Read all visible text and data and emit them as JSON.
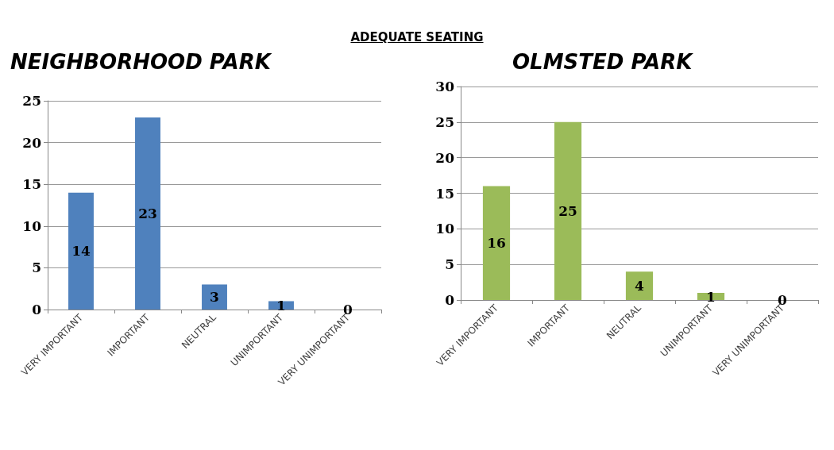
{
  "chart_data": [
    {
      "type": "bar",
      "title": "NEIGHBORHOOD PARK",
      "annotations": [
        "ADEQUATE SEATING"
      ],
      "categories": [
        "VERY IMPORTANT",
        "IMPORTANT",
        "NEUTRAL",
        "UNIMPORTANT",
        "VERY UNIMPORTANT"
      ],
      "values": [
        14,
        23,
        3,
        1,
        0
      ],
      "color": "#4f81bd",
      "ylim": [
        0,
        25
      ],
      "yticks": [
        0,
        5,
        10,
        15,
        20,
        25
      ],
      "grid": "y",
      "data_labels": true
    },
    {
      "type": "bar",
      "title": "OLMSTED PARK",
      "categories": [
        "VERY IMPORTANT",
        "IMPORTANT",
        "NEUTRAL",
        "UNIMPORTANT",
        "VERY UNIMPORTANT"
      ],
      "values": [
        16,
        25,
        4,
        1,
        0
      ],
      "color": "#9bbb59",
      "ylim": [
        0,
        30
      ],
      "yticks": [
        0,
        5,
        10,
        15,
        20,
        25,
        30
      ],
      "grid": "y",
      "data_labels": true
    }
  ]
}
